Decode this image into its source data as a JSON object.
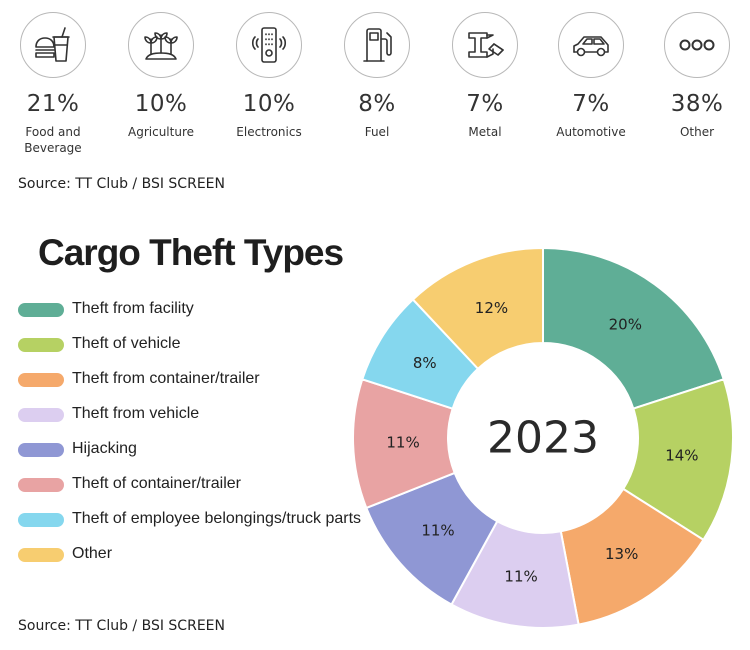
{
  "categories_row": {
    "items": [
      {
        "icon": "food-beverage-icon",
        "percent": "21%",
        "label": "Food and Beverage"
      },
      {
        "icon": "agriculture-icon",
        "percent": "10%",
        "label": "Agriculture"
      },
      {
        "icon": "electronics-icon",
        "percent": "10%",
        "label": "Electronics"
      },
      {
        "icon": "fuel-icon",
        "percent": "8%",
        "label": "Fuel"
      },
      {
        "icon": "metal-icon",
        "percent": "7%",
        "label": "Metal"
      },
      {
        "icon": "automotive-icon",
        "percent": "7%",
        "label": "Automotive"
      },
      {
        "icon": "other-icon",
        "percent": "38%",
        "label": "Other"
      }
    ],
    "source": "Source: TT Club / BSI SCREEN"
  },
  "chart_data": {
    "type": "pie",
    "title": "Cargo Theft Types",
    "center_label": "2023",
    "legend_position": "left",
    "slices": [
      {
        "name": "Theft from facility",
        "value": 20,
        "label": "20%",
        "color": "#5fae96"
      },
      {
        "name": "Theft of vehicle",
        "value": 14,
        "label": "14%",
        "color": "#b6d163"
      },
      {
        "name": "Theft from container/trailer",
        "value": 13,
        "label": "13%",
        "color": "#f5a96b"
      },
      {
        "name": "Theft from vehicle",
        "value": 11,
        "label": "11%",
        "color": "#dccef0"
      },
      {
        "name": "Hijacking",
        "value": 11,
        "label": "11%",
        "color": "#8f97d4"
      },
      {
        "name": "Theft of container/trailer",
        "value": 11,
        "label": "11%",
        "color": "#e8a3a3"
      },
      {
        "name": "Theft of employee belongings/truck parts",
        "value": 8,
        "label": "8%",
        "color": "#85d7ee"
      },
      {
        "name": "Other",
        "value": 12,
        "label": "12%",
        "color": "#f7cd70"
      }
    ],
    "source": "Source: TT Club / BSI SCREEN"
  }
}
